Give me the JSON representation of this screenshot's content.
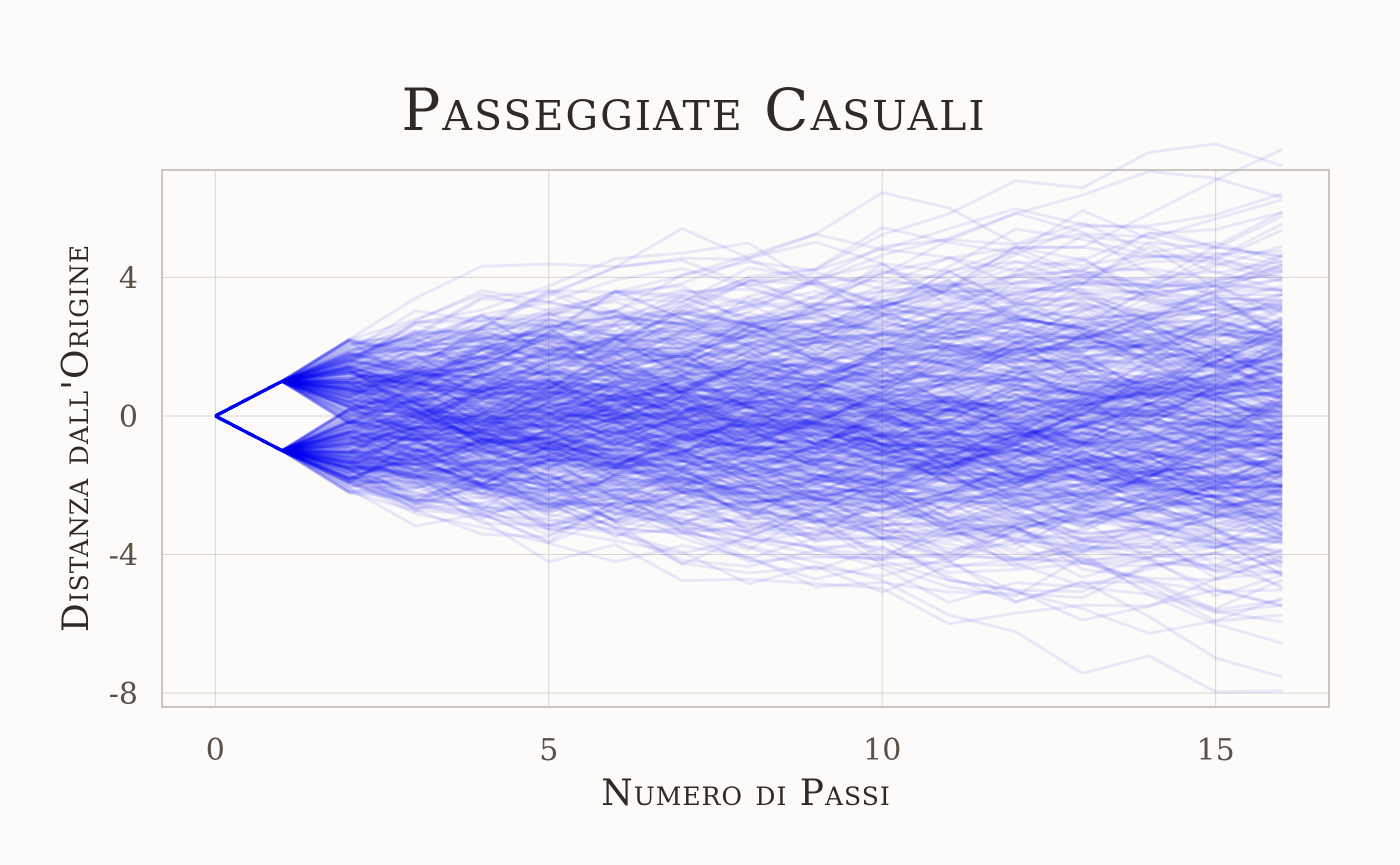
{
  "chart_data": {
    "type": "line",
    "title": "Passeggiate Casuali",
    "xlabel": "Numero di Passi",
    "ylabel": "Distanza dall'Origine",
    "x_ticks": [
      0,
      5,
      10,
      15
    ],
    "y_ticks": [
      -8,
      -4,
      0,
      4
    ],
    "xlim": [
      -0.8,
      16.7
    ],
    "ylim": [
      -8.4,
      7.1
    ],
    "grid": true,
    "legend": "none",
    "line_color": "#0000ee",
    "line_alpha": 0.08,
    "num_walks": 500,
    "steps": 16,
    "step_size": 1
  }
}
